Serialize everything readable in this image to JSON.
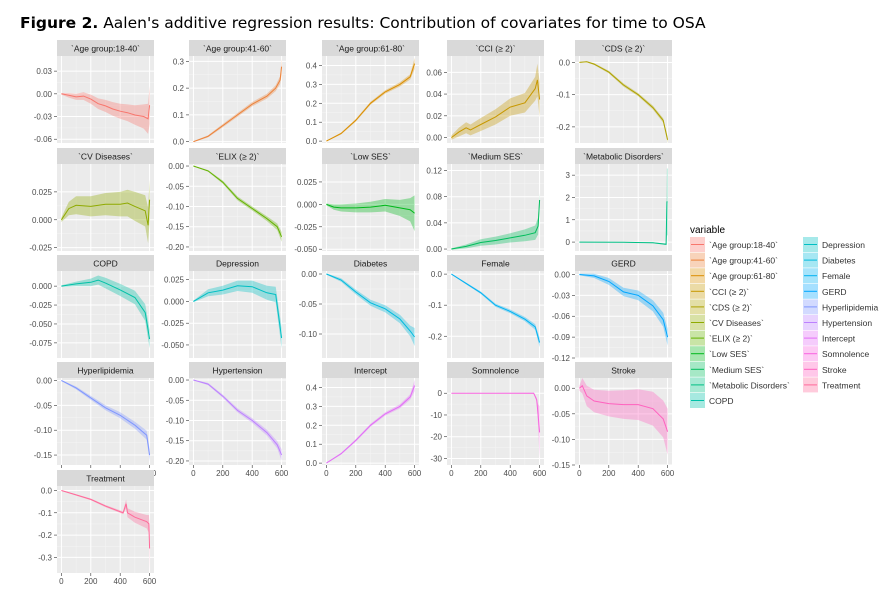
{
  "title": {
    "bold": "Figure 2.",
    "text": " Aalen's additive regression results: Contribution of covariates for time to OSA"
  },
  "chart_data": {
    "type": "line",
    "subtype": "faceted line with confidence ribbon",
    "xlim": [
      -30,
      630
    ],
    "xticks": [
      0,
      200,
      400,
      600
    ],
    "grid": true,
    "legend": {
      "title": "variable",
      "placement": "right"
    },
    "facets": [
      {
        "label": "`Age group:18-40`",
        "color": "#F8766D",
        "ylim": [
          -0.065,
          0.05
        ],
        "yticks": [
          0.03,
          0.0,
          -0.03,
          -0.06
        ],
        "ytick_labels": [
          "0.03",
          "0.00",
          "-0.03",
          "-0.06"
        ],
        "t": [
          0,
          50,
          100,
          150,
          200,
          250,
          300,
          350,
          400,
          450,
          500,
          560,
          590,
          600
        ],
        "est": [
          0,
          -0.002,
          -0.004,
          -0.003,
          -0.007,
          -0.013,
          -0.016,
          -0.02,
          -0.023,
          -0.025,
          -0.028,
          -0.03,
          -0.033,
          -0.015
        ],
        "band": [
          0.001,
          0.003,
          0.004,
          0.005,
          0.006,
          0.007,
          0.008,
          0.009,
          0.01,
          0.011,
          0.013,
          0.016,
          0.02,
          0.025
        ]
      },
      {
        "label": "`Age group:41-60`",
        "color": "#EC8239",
        "ylim": [
          -0.005,
          0.32
        ],
        "yticks": [
          0.3,
          0.2,
          0.1,
          0.0
        ],
        "ytick_labels": [
          "0.3",
          "0.2",
          "0.1",
          "0.0"
        ],
        "t": [
          0,
          100,
          200,
          300,
          400,
          500,
          560,
          590,
          600
        ],
        "est": [
          0,
          0.02,
          0.06,
          0.1,
          0.14,
          0.17,
          0.2,
          0.23,
          0.28
        ],
        "band": [
          0.002,
          0.004,
          0.006,
          0.007,
          0.008,
          0.009,
          0.011,
          0.015,
          0.03
        ]
      },
      {
        "label": "`Age group:61-80`",
        "color": "#DB8E00",
        "ylim": [
          -0.01,
          0.45
        ],
        "yticks": [
          0.4,
          0.3,
          0.2,
          0.1,
          0.0
        ],
        "ytick_labels": [
          "0.4",
          "0.3",
          "0.2",
          "0.1",
          "0.0"
        ],
        "t": [
          0,
          100,
          200,
          300,
          400,
          500,
          570,
          600
        ],
        "est": [
          0,
          0.04,
          0.11,
          0.2,
          0.26,
          0.3,
          0.34,
          0.41
        ],
        "band": [
          0.002,
          0.005,
          0.007,
          0.008,
          0.009,
          0.011,
          0.014,
          0.03
        ]
      },
      {
        "label": "`CCI (≥ 2)`",
        "color": "#C79800",
        "ylim": [
          -0.005,
          0.075
        ],
        "yticks": [
          0.06,
          0.04,
          0.02,
          0.0
        ],
        "ytick_labels": [
          "0.06",
          "0.04",
          "0.02",
          "0.00"
        ],
        "t": [
          0,
          50,
          100,
          130,
          200,
          300,
          400,
          500,
          570,
          585,
          600
        ],
        "est": [
          0,
          0.005,
          0.009,
          0.007,
          0.012,
          0.019,
          0.028,
          0.032,
          0.045,
          0.053,
          0.035
        ],
        "band": [
          0.002,
          0.004,
          0.005,
          0.005,
          0.006,
          0.007,
          0.008,
          0.009,
          0.011,
          0.015,
          0.016
        ]
      },
      {
        "label": "`CDS (≥ 2)`",
        "color": "#AEA200",
        "ylim": [
          -0.25,
          0.02
        ],
        "yticks": [
          0.0,
          -0.1,
          -0.2
        ],
        "ytick_labels": [
          "0.0",
          "-0.1",
          "-0.2"
        ],
        "t": [
          0,
          50,
          100,
          200,
          300,
          400,
          500,
          570,
          600
        ],
        "est": [
          0,
          0.002,
          -0.005,
          -0.03,
          -0.07,
          -0.1,
          -0.14,
          -0.18,
          -0.24
        ],
        "band": [
          0.001,
          0.002,
          0.003,
          0.004,
          0.005,
          0.005,
          0.006,
          0.007,
          0.01
        ]
      },
      {
        "label": "`CV Diseases`",
        "color": "#8FAA00",
        "ylim": [
          -0.028,
          0.05
        ],
        "yticks": [
          0.025,
          0.0,
          -0.025
        ],
        "ytick_labels": [
          "0.025",
          "0.000",
          "-0.025"
        ],
        "t": [
          0,
          50,
          100,
          200,
          300,
          400,
          450,
          500,
          570,
          590,
          600
        ],
        "est": [
          0,
          0.01,
          0.013,
          0.012,
          0.014,
          0.014,
          0.015,
          0.012,
          0.008,
          -0.005,
          0.018
        ],
        "band": [
          0.002,
          0.006,
          0.008,
          0.009,
          0.01,
          0.011,
          0.012,
          0.013,
          0.014,
          0.016,
          0.018
        ]
      },
      {
        "label": "`ELIX (≥ 2)`",
        "color": "#64B200",
        "ylim": [
          -0.21,
          0.005
        ],
        "yticks": [
          0.0,
          -0.05,
          -0.1,
          -0.15,
          -0.2
        ],
        "ytick_labels": [
          "0.00",
          "-0.05",
          "-0.10",
          "-0.15",
          "-0.20"
        ],
        "t": [
          0,
          100,
          200,
          300,
          400,
          500,
          570,
          600
        ],
        "est": [
          0,
          -0.012,
          -0.04,
          -0.08,
          -0.105,
          -0.13,
          -0.15,
          -0.175
        ],
        "band": [
          0.001,
          0.002,
          0.004,
          0.005,
          0.005,
          0.006,
          0.008,
          0.012
        ]
      },
      {
        "label": "`Low SES`",
        "color": "#00B81B",
        "ylim": [
          -0.052,
          0.045
        ],
        "yticks": [
          0.025,
          0.0,
          -0.025,
          -0.05
        ],
        "ytick_labels": [
          "0.025",
          "0.000",
          "-0.025",
          "-0.050"
        ],
        "t": [
          0,
          50,
          100,
          200,
          300,
          400,
          500,
          570,
          600
        ],
        "est": [
          0,
          -0.003,
          -0.004,
          -0.004,
          -0.003,
          -0.001,
          -0.004,
          -0.006,
          -0.01
        ],
        "band": [
          0.001,
          0.003,
          0.004,
          0.005,
          0.006,
          0.007,
          0.009,
          0.013,
          0.02
        ]
      },
      {
        "label": "`Medium SES`",
        "color": "#00BD5C",
        "ylim": [
          -0.003,
          0.13
        ],
        "yticks": [
          0.12,
          0.08,
          0.04,
          0.0
        ],
        "ytick_labels": [
          "0.12",
          "0.08",
          "0.04",
          "0.00"
        ],
        "t": [
          0,
          100,
          200,
          300,
          400,
          500,
          570,
          590,
          600
        ],
        "est": [
          0,
          0.004,
          0.01,
          0.013,
          0.017,
          0.021,
          0.025,
          0.035,
          0.075
        ],
        "band": [
          0.001,
          0.003,
          0.005,
          0.006,
          0.007,
          0.009,
          0.011,
          0.013,
          0.01
        ]
      },
      {
        "label": "`Metabolic Disorders`",
        "color": "#00C085",
        "ylim": [
          -0.4,
          3.5
        ],
        "yticks": [
          3,
          2,
          1,
          0
        ],
        "ytick_labels": [
          "3",
          "2",
          "1",
          "0"
        ],
        "t": [
          0,
          300,
          500,
          590,
          595,
          600
        ],
        "est": [
          0,
          -0.01,
          -0.03,
          -0.1,
          1.8,
          1.8
        ],
        "band": [
          0.01,
          0.01,
          0.02,
          0.03,
          1.5,
          1.5
        ]
      },
      {
        "label": "COPD",
        "color": "#00C1A7",
        "ylim": [
          -0.095,
          0.02
        ],
        "yticks": [
          0.0,
          -0.025,
          -0.05,
          -0.075
        ],
        "ytick_labels": [
          "0.000",
          "-0.025",
          "-0.050",
          "-0.075"
        ],
        "t": [
          0,
          100,
          200,
          250,
          300,
          400,
          500,
          570,
          600
        ],
        "est": [
          0,
          0.003,
          0.005,
          0.008,
          0.004,
          -0.005,
          -0.015,
          -0.035,
          -0.07
        ],
        "band": [
          0.001,
          0.003,
          0.005,
          0.006,
          0.007,
          0.008,
          0.009,
          0.011,
          0.012
        ]
      },
      {
        "label": "Depression",
        "color": "#00BFC4",
        "ylim": [
          -0.065,
          0.035
        ],
        "yticks": [
          0.025,
          0.0,
          -0.025,
          -0.05
        ],
        "ytick_labels": [
          "0.025",
          "0.000",
          "-0.025",
          "-0.050"
        ],
        "t": [
          0,
          100,
          200,
          300,
          400,
          500,
          560,
          600
        ],
        "est": [
          0,
          0.01,
          0.013,
          0.018,
          0.017,
          0.01,
          0.008,
          -0.042
        ],
        "band": [
          0.001,
          0.004,
          0.005,
          0.006,
          0.007,
          0.008,
          0.009,
          0.012
        ]
      },
      {
        "label": "Diabetes",
        "color": "#00BADE",
        "ylim": [
          -0.14,
          0.005
        ],
        "yticks": [
          0.0,
          -0.05,
          -0.1
        ],
        "ytick_labels": [
          "0.00",
          "-0.05",
          "-0.10"
        ],
        "t": [
          0,
          100,
          200,
          300,
          400,
          500,
          570,
          600
        ],
        "est": [
          0,
          -0.01,
          -0.03,
          -0.048,
          -0.058,
          -0.075,
          -0.095,
          -0.105
        ],
        "band": [
          0.001,
          0.003,
          0.004,
          0.005,
          0.006,
          0.007,
          0.009,
          0.015
        ]
      },
      {
        "label": "Female",
        "color": "#00B2F3",
        "ylim": [
          -0.27,
          0.01
        ],
        "yticks": [
          0.0,
          -0.1,
          -0.2
        ],
        "ytick_labels": [
          "0.0",
          "-0.1",
          "-0.2"
        ],
        "t": [
          0,
          100,
          200,
          300,
          400,
          500,
          570,
          600
        ],
        "est": [
          0,
          -0.03,
          -0.06,
          -0.1,
          -0.12,
          -0.145,
          -0.17,
          -0.22
        ],
        "band": [
          0.001,
          0.003,
          0.004,
          0.005,
          0.006,
          0.007,
          0.009,
          0.015
        ]
      },
      {
        "label": "GERD",
        "color": "#00A6FF",
        "ylim": [
          -0.12,
          0.005
        ],
        "yticks": [
          0.0,
          -0.03,
          -0.06,
          -0.09,
          -0.12
        ],
        "ytick_labels": [
          "0.00",
          "-0.03",
          "-0.06",
          "-0.09",
          "-0.12"
        ],
        "t": [
          0,
          100,
          200,
          300,
          400,
          500,
          570,
          600
        ],
        "est": [
          0,
          -0.002,
          -0.01,
          -0.025,
          -0.03,
          -0.045,
          -0.065,
          -0.09
        ],
        "band": [
          0.001,
          0.003,
          0.005,
          0.006,
          0.007,
          0.008,
          0.01,
          0.012
        ]
      },
      {
        "label": "Hyperlipidemia",
        "color": "#7F96FF",
        "ylim": [
          -0.17,
          0.005
        ],
        "yticks": [
          0.0,
          -0.05,
          -0.1,
          -0.15
        ],
        "ytick_labels": [
          "0.00",
          "-0.05",
          "-0.10",
          "-0.15"
        ],
        "t": [
          0,
          100,
          200,
          300,
          400,
          500,
          580,
          600
        ],
        "est": [
          0,
          -0.015,
          -0.035,
          -0.055,
          -0.07,
          -0.09,
          -0.11,
          -0.15
        ],
        "band": [
          0.001,
          0.003,
          0.004,
          0.005,
          0.006,
          0.007,
          0.009,
          0.012
        ]
      },
      {
        "label": "Hypertension",
        "color": "#BC81FF",
        "ylim": [
          -0.21,
          0.005
        ],
        "yticks": [
          0.0,
          -0.05,
          -0.1,
          -0.15,
          -0.2
        ],
        "ytick_labels": [
          "0.00",
          "-0.05",
          "-0.10",
          "-0.15",
          "-0.20"
        ],
        "t": [
          0,
          100,
          200,
          300,
          400,
          500,
          570,
          600
        ],
        "est": [
          0,
          -0.01,
          -0.04,
          -0.075,
          -0.1,
          -0.13,
          -0.16,
          -0.185
        ],
        "band": [
          0.001,
          0.003,
          0.004,
          0.005,
          0.006,
          0.007,
          0.009,
          0.014
        ]
      },
      {
        "label": "Intercept",
        "color": "#E26EF7",
        "ylim": [
          -0.01,
          0.45
        ],
        "yticks": [
          0.4,
          0.3,
          0.2,
          0.1,
          0.0
        ],
        "ytick_labels": [
          "0.4",
          "0.3",
          "0.2",
          "0.1",
          "0.0"
        ],
        "t": [
          0,
          100,
          200,
          300,
          400,
          500,
          570,
          600
        ],
        "est": [
          0,
          0.05,
          0.12,
          0.2,
          0.26,
          0.3,
          0.35,
          0.41
        ],
        "band": [
          0.002,
          0.005,
          0.007,
          0.008,
          0.009,
          0.011,
          0.014,
          0.03
        ]
      },
      {
        "label": "Somnolence",
        "color": "#F863DF",
        "ylim": [
          -33,
          7
        ],
        "yticks": [
          0,
          -10,
          -20,
          -30
        ],
        "ytick_labels": [
          "0",
          "-10",
          "-20",
          "-30"
        ],
        "t": [
          0,
          300,
          560,
          580,
          590,
          600
        ],
        "est": [
          0,
          0,
          0,
          -3,
          -10,
          -18
        ],
        "band": [
          0.1,
          0.1,
          0.2,
          1,
          5,
          12
        ]
      },
      {
        "label": "Stroke",
        "color": "#FF62BF",
        "ylim": [
          -0.15,
          0.02
        ],
        "yticks": [
          0.0,
          -0.05,
          -0.1,
          -0.15
        ],
        "ytick_labels": [
          "0.00",
          "-0.05",
          "-0.10",
          "-0.15"
        ],
        "t": [
          0,
          20,
          50,
          100,
          200,
          300,
          400,
          500,
          570,
          600
        ],
        "est": [
          0,
          0.005,
          -0.015,
          -0.025,
          -0.03,
          -0.032,
          -0.032,
          -0.04,
          -0.06,
          -0.085
        ],
        "band": [
          0.005,
          0.015,
          0.02,
          0.022,
          0.025,
          0.028,
          0.03,
          0.033,
          0.036,
          0.045
        ]
      },
      {
        "label": "Treatment",
        "color": "#FF6A9A",
        "ylim": [
          -0.37,
          0.02
        ],
        "yticks": [
          0.0,
          -0.1,
          -0.2,
          -0.3
        ],
        "ytick_labels": [
          "0.0",
          "-0.1",
          "-0.2",
          "-0.3"
        ],
        "t": [
          0,
          100,
          200,
          300,
          420,
          440,
          450,
          500,
          580,
          595,
          600
        ],
        "est": [
          0,
          -0.02,
          -0.04,
          -0.07,
          -0.1,
          -0.06,
          -0.1,
          -0.12,
          -0.14,
          -0.15,
          -0.26
        ],
        "band": [
          0.002,
          0.003,
          0.004,
          0.005,
          0.006,
          0.02,
          0.02,
          0.025,
          0.03,
          0.04,
          0.1
        ]
      }
    ]
  }
}
